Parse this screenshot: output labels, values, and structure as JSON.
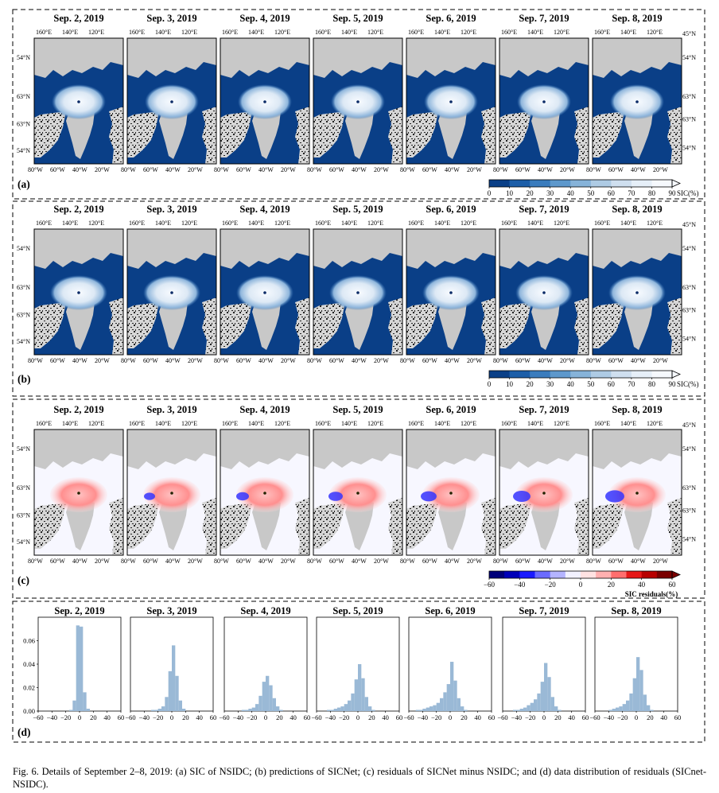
{
  "dates": [
    "Sep. 2, 2019",
    "Sep. 3, 2019",
    "Sep. 4, 2019",
    "Sep. 5, 2019",
    "Sep. 6, 2019",
    "Sep. 7, 2019",
    "Sep. 8, 2019"
  ],
  "panel_labels": [
    "(a)",
    "(b)",
    "(c)",
    "(d)"
  ],
  "map_axis_labels": {
    "top": [
      "160°E",
      "140°E",
      "120°E"
    ],
    "left": [
      "54°N",
      "63°N",
      "63°N",
      "54°N"
    ],
    "right": [
      "45°N",
      "54°N",
      "63°N",
      "63°N",
      "54°N"
    ],
    "bottom": [
      "80°W",
      "60°W",
      "40°W",
      "20°W"
    ]
  },
  "sic_colorbar": {
    "label": "SIC(%)",
    "ticks": [
      "0",
      "10",
      "20",
      "30",
      "40",
      "50",
      "60",
      "70",
      "80",
      "90"
    ],
    "colors": [
      "#0a3f87",
      "#1c5ea8",
      "#3a7cbd",
      "#5d98cc",
      "#86b3d9",
      "#aecbe4",
      "#cfdfef",
      "#e6eff8",
      "#f6f9fd"
    ]
  },
  "residual_colorbar": {
    "label": "SIC residuals(%)",
    "ticks": [
      "−60",
      "−40",
      "−20",
      "0",
      "20",
      "40",
      "60"
    ],
    "colors": [
      "#00007a",
      "#0000b8",
      "#1a1aff",
      "#6b6bff",
      "#b4b4ff",
      "#f1f1ff",
      "#ffe2e2",
      "#ffb0b0",
      "#ff6e6e",
      "#e61818",
      "#b80000",
      "#7a0000"
    ]
  },
  "histogram_axes": {
    "x_ticks": [
      "−60",
      "−40",
      "−20",
      "0",
      "20",
      "40",
      "60"
    ],
    "y_ticks": [
      "0.00",
      "0.02",
      "0.04",
      "0.06"
    ]
  },
  "colors": {
    "ocean": "#0a3f87",
    "land": "#c8c8c8",
    "histogram_bar": "#9ab9d6"
  },
  "chart_data": {
    "type": "bar",
    "x_bin_width": 5,
    "xlim": [
      -60,
      60
    ],
    "ylim": [
      0,
      0.08
    ],
    "x_bin_centers": [
      -47.5,
      -42.5,
      -37.5,
      -32.5,
      -27.5,
      -22.5,
      -17.5,
      -12.5,
      -7.5,
      -2.5,
      2.5,
      7.5,
      12.5,
      17.5,
      22.5,
      27.5,
      32.5
    ],
    "series": [
      {
        "name": "Sep. 2, 2019",
        "values": [
          0,
          0,
          0,
          0,
          0,
          0,
          0,
          0.001,
          0.009,
          0.073,
          0.072,
          0.016,
          0.002,
          0,
          0,
          0,
          0
        ]
      },
      {
        "name": "Sep. 3, 2019",
        "values": [
          0,
          0,
          0,
          0,
          0.001,
          0.001,
          0.002,
          0.004,
          0.012,
          0.034,
          0.056,
          0.03,
          0.009,
          0.002,
          0,
          0,
          0
        ]
      },
      {
        "name": "Sep. 4, 2019",
        "values": [
          0,
          0,
          0,
          0.001,
          0.001,
          0.002,
          0.003,
          0.006,
          0.013,
          0.025,
          0.03,
          0.022,
          0.011,
          0.004,
          0.001,
          0,
          0
        ]
      },
      {
        "name": "Sep. 5, 2019",
        "values": [
          0,
          0.001,
          0.001,
          0.002,
          0.003,
          0.004,
          0.006,
          0.009,
          0.015,
          0.027,
          0.04,
          0.028,
          0.012,
          0.004,
          0.001,
          0,
          0
        ]
      },
      {
        "name": "Sep. 6, 2019",
        "values": [
          0.001,
          0.001,
          0.002,
          0.003,
          0.004,
          0.005,
          0.007,
          0.011,
          0.016,
          0.023,
          0.042,
          0.026,
          0.011,
          0.004,
          0.001,
          0,
          0
        ]
      },
      {
        "name": "Sep. 7, 2019",
        "values": [
          0,
          0.001,
          0.001,
          0.002,
          0.003,
          0.005,
          0.007,
          0.01,
          0.015,
          0.025,
          0.041,
          0.029,
          0.012,
          0.004,
          0.001,
          0,
          0
        ]
      },
      {
        "name": "Sep. 8, 2019",
        "values": [
          0,
          0,
          0.001,
          0.002,
          0.003,
          0.004,
          0.006,
          0.009,
          0.015,
          0.028,
          0.046,
          0.035,
          0.014,
          0.005,
          0.001,
          0,
          0
        ]
      }
    ]
  },
  "caption": "Fig. 6.   Details of September 2–8, 2019: (a) SIC of NSIDC; (b) predictions of SICNet; (c) residuals of SICNet minus NSIDC; and (d) data distribution of residuals (SICnet-NSIDC)."
}
